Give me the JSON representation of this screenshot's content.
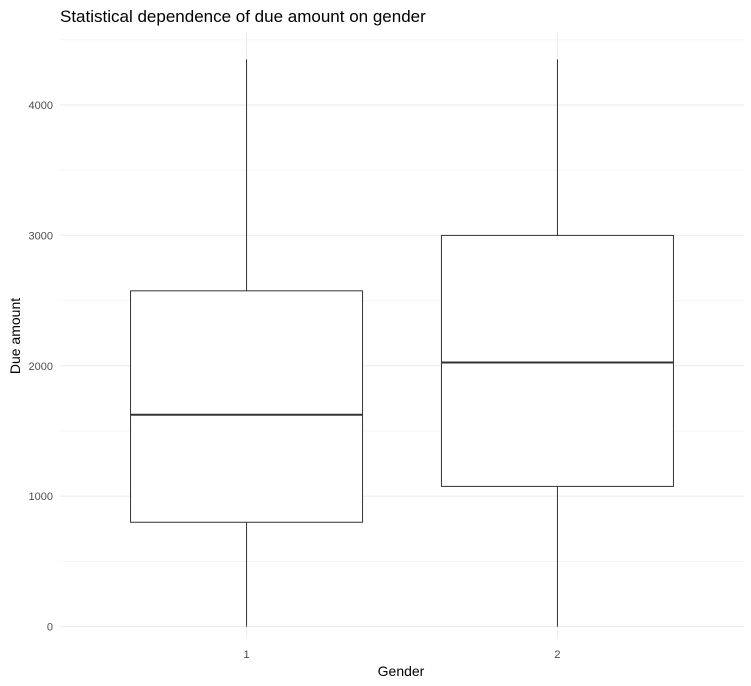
{
  "chart_data": {
    "type": "boxplot",
    "title": "Statistical dependence of due amount on gender",
    "xlabel": "Gender",
    "ylabel": "Due amount",
    "categories": [
      "1",
      "2"
    ],
    "boxes": [
      {
        "category": "1",
        "min": 0,
        "q1": 800,
        "median": 1625,
        "q3": 2575,
        "max": 4350
      },
      {
        "category": "2",
        "min": 0,
        "q1": 1075,
        "median": 2025,
        "q3": 3000,
        "max": 4350
      }
    ],
    "ylim": [
      -80,
      4560
    ],
    "yticks": [
      0,
      1000,
      2000,
      3000,
      4000
    ],
    "yticks_labels": [
      "0",
      "1000",
      "2000",
      "3000",
      "4000"
    ],
    "grid": true,
    "colors": {
      "box_line": "#333333",
      "box_fill": "#ffffff",
      "grid": "#ebebeb"
    }
  }
}
